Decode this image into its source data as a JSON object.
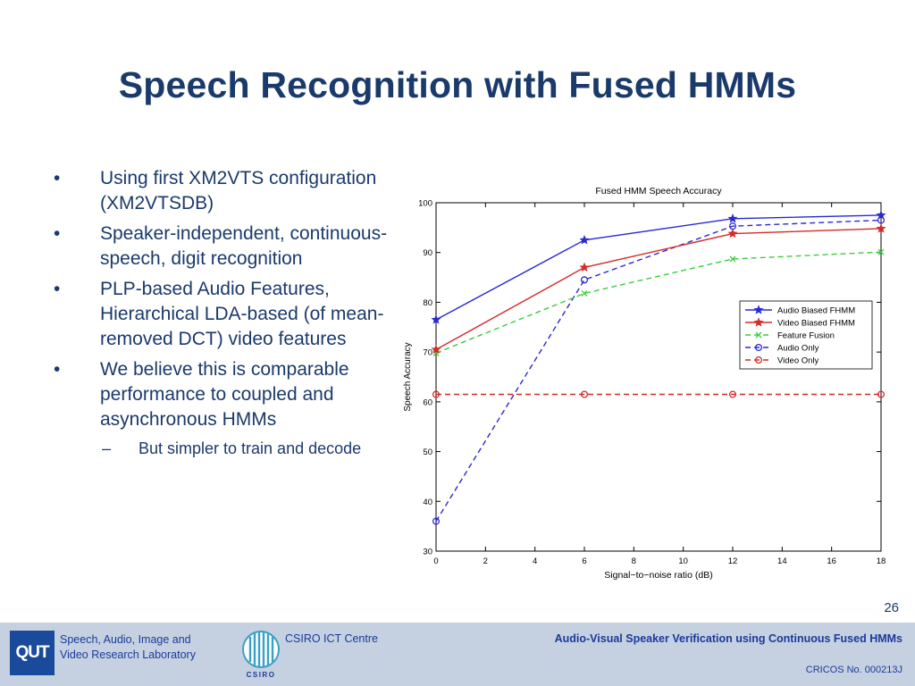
{
  "slide": {
    "title": "Speech Recognition with Fused HMMs",
    "page_number": "26"
  },
  "bullets": [
    {
      "marker": "•",
      "text": "Using first XM2VTS configuration (XM2VTSDB)"
    },
    {
      "marker": "•",
      "text": "Speaker-independent, continuous-speech, digit recognition"
    },
    {
      "marker": "•",
      "text": "PLP-based Audio Features, Hierarchical LDA-based (of mean-removed DCT) video features"
    },
    {
      "marker": "•",
      "text": "We believe this is comparable performance to coupled and asynchronous HMMs"
    }
  ],
  "sub_bullets": [
    {
      "marker": "–",
      "text": "But simpler to train and decode"
    }
  ],
  "footer": {
    "qut_logo": "QUT",
    "lab_line1": "Speech, Audio, Image and",
    "lab_line2": "Video Research Laboratory",
    "csiro_logo_text": "CSIRO",
    "csiro_centre": "CSIRO ICT Centre",
    "talk_title": "Audio-Visual Speaker Verification using Continuous Fused HMMs",
    "cricos": "CRICOS No. 000213J"
  },
  "chart_data": {
    "type": "line",
    "title": "Fused HMM Speech Accuracy",
    "xlabel": "Signal−to−noise ratio (dB)",
    "ylabel": "Speech Accuracy",
    "xlim": [
      0,
      18
    ],
    "ylim": [
      30,
      100
    ],
    "xticks": [
      0,
      2,
      4,
      6,
      8,
      10,
      12,
      14,
      16,
      18
    ],
    "yticks": [
      30,
      40,
      50,
      60,
      70,
      80,
      90,
      100
    ],
    "grid": false,
    "legend_position": "right",
    "series": [
      {
        "name": "Audio Biased FHMM",
        "x": [
          0,
          6,
          12,
          18
        ],
        "y": [
          76.5,
          92.5,
          96.8,
          97.5
        ],
        "color": "#2a2ad0",
        "dash": "solid",
        "marker": "star"
      },
      {
        "name": "Video Biased FHMM",
        "x": [
          0,
          6,
          12,
          18
        ],
        "y": [
          70.5,
          87.0,
          93.8,
          94.8
        ],
        "color": "#d42a2a",
        "dash": "solid",
        "marker": "star"
      },
      {
        "name": "Feature Fusion",
        "x": [
          0,
          6,
          12,
          18
        ],
        "y": [
          69.8,
          81.8,
          88.7,
          90.1
        ],
        "color": "#3ccc3c",
        "dash": "dashed",
        "marker": "x"
      },
      {
        "name": "Audio Only",
        "x": [
          0,
          6,
          12,
          18
        ],
        "y": [
          36.0,
          84.5,
          95.3,
          96.5
        ],
        "color": "#2a2ad0",
        "dash": "dashed",
        "marker": "circle"
      },
      {
        "name": "Video Only",
        "x": [
          0,
          6,
          12,
          18
        ],
        "y": [
          61.5,
          61.5,
          61.5,
          61.5
        ],
        "color": "#d42a2a",
        "dash": "dashed",
        "marker": "circle"
      }
    ]
  }
}
